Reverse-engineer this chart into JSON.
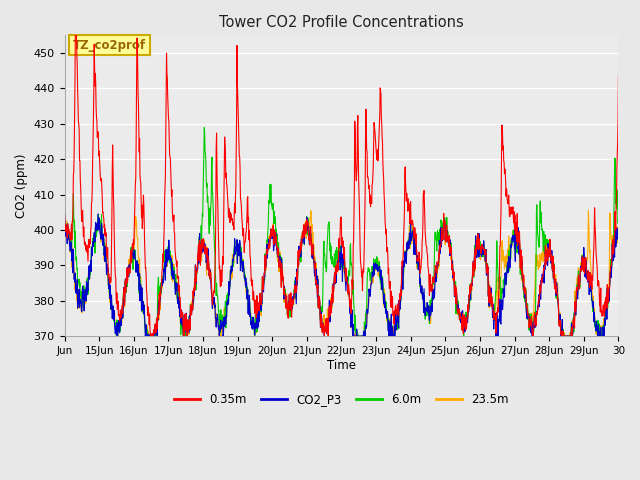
{
  "title": "Tower CO2 Profile Concentrations",
  "xlabel": "Time",
  "ylabel": "CO2 (ppm)",
  "ylim": [
    370,
    455
  ],
  "yticks": [
    370,
    380,
    390,
    400,
    410,
    420,
    430,
    440,
    450
  ],
  "fig_bg_color": "#e8e8e8",
  "plot_bg_color": "#ebebeb",
  "annotation_text": "TZ_co2prof",
  "annotation_bg": "#ffff99",
  "annotation_border": "#ccaa00",
  "series": [
    {
      "label": "0.35m",
      "color": "#ff0000",
      "lw": 0.8,
      "zorder": 4
    },
    {
      "label": "CO2_P3",
      "color": "#0000cc",
      "lw": 0.8,
      "zorder": 3
    },
    {
      "label": "6.0m",
      "color": "#00cc00",
      "lw": 0.8,
      "zorder": 2
    },
    {
      "label": "23.5m",
      "color": "#ffaa00",
      "lw": 0.8,
      "zorder": 1
    }
  ],
  "xtick_labels": [
    "Jun",
    "15Jun",
    "16Jun",
    "17Jun",
    "18Jun",
    "19Jun",
    "20Jun",
    "21Jun",
    "22Jun",
    "23Jun",
    "24Jun",
    "25Jun",
    "26Jun",
    "27Jun",
    "28Jun",
    "29Jun",
    "30"
  ],
  "n_points": 1440,
  "seed": 7
}
